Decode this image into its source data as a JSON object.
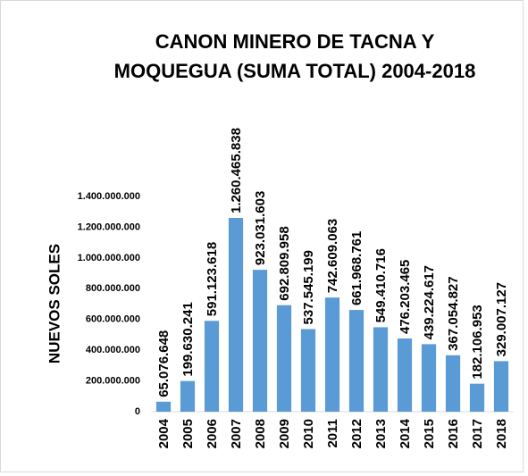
{
  "chart_data": {
    "type": "bar",
    "title": "CANON MINERO DE TACNA Y MOQUEGUA (SUMA TOTAL) 2004-2018",
    "y_label": "NUEVOS SOLES",
    "categories": [
      "2004",
      "2005",
      "2006",
      "2007",
      "2008",
      "2009",
      "2010",
      "2011",
      "2012",
      "2013",
      "2014",
      "2015",
      "2016",
      "2017",
      "2018"
    ],
    "values": [
      65076648,
      199630241,
      591123618,
      1260465838,
      923031603,
      692809958,
      537545199,
      742609063,
      661968761,
      549410716,
      476203465,
      439224617,
      367054827,
      182106953,
      329007127
    ],
    "value_labels": [
      "65.076.648",
      "199.630.241",
      "591.123.618",
      "1.260.465.838",
      "923.031.603",
      "692.809.958",
      "537.545.199",
      "742.609.063",
      "661.968.761",
      "549.410.716",
      "476.203.465",
      "439.224.617",
      "367.054.827",
      "182.106.953",
      "329.007.127"
    ],
    "color": "#5b9bd5",
    "ylim": [
      0,
      1400000000
    ],
    "yticks": [
      0,
      {
        "value": 200000000,
        "label": "200.000.000"
      },
      {
        "value": 400000000,
        "label": "400.000.000"
      },
      {
        "value": 600000000,
        "label": "600.000.000"
      },
      {
        "value": 800000000,
        "label": "800.000.000"
      },
      {
        "value": 1000000000,
        "label": "1.000.000.000"
      },
      {
        "value": 1200000000,
        "label": "1.200.000.000"
      },
      {
        "value": 1400000000,
        "label": "1.400.000.000"
      }
    ],
    "grid": false
  }
}
